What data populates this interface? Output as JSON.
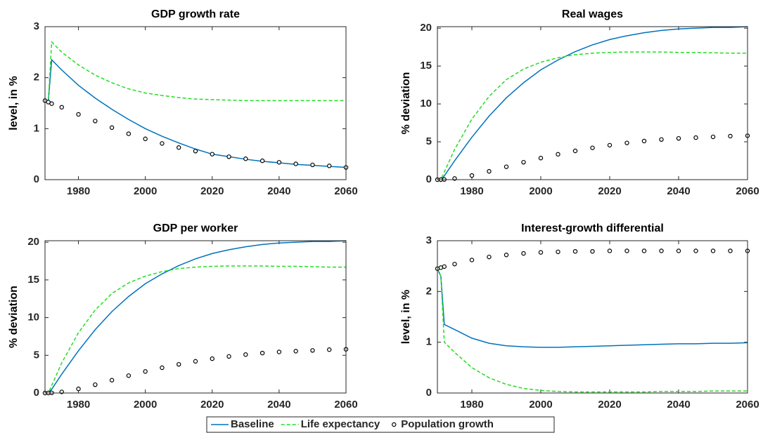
{
  "chart_data": [
    {
      "type": "line",
      "title": "GDP growth rate",
      "y_label": "level, in %",
      "x": [
        1970,
        1971,
        1972,
        1975,
        1980,
        1985,
        1990,
        1995,
        2000,
        2005,
        2010,
        2015,
        2020,
        2025,
        2030,
        2035,
        2040,
        2045,
        2050,
        2055,
        2060
      ],
      "xlim": [
        1970,
        2060
      ],
      "xticks": [
        1980,
        2000,
        2020,
        2040,
        2060
      ],
      "ylim": [
        0,
        3
      ],
      "yticks": [
        0,
        1,
        2,
        3
      ],
      "series": [
        {
          "name": "Baseline",
          "color": "#0072bd",
          "style": "solid",
          "values": [
            1.55,
            1.55,
            2.35,
            2.15,
            1.85,
            1.6,
            1.38,
            1.18,
            1.0,
            0.85,
            0.72,
            0.6,
            0.5,
            0.45,
            0.4,
            0.36,
            0.33,
            0.3,
            0.28,
            0.26,
            0.24
          ]
        },
        {
          "name": "Life expectancy",
          "color": "#22dd22",
          "style": "dashed",
          "values": [
            1.55,
            1.55,
            2.7,
            2.5,
            2.25,
            2.05,
            1.9,
            1.78,
            1.7,
            1.65,
            1.61,
            1.58,
            1.57,
            1.56,
            1.55,
            1.55,
            1.55,
            1.55,
            1.55,
            1.55,
            1.55
          ]
        },
        {
          "name": "Population growth",
          "color": "#000000",
          "style": "markers",
          "values": [
            1.55,
            1.52,
            1.49,
            1.42,
            1.28,
            1.15,
            1.02,
            0.9,
            0.8,
            0.71,
            0.63,
            0.56,
            0.5,
            0.45,
            0.41,
            0.37,
            0.34,
            0.31,
            0.29,
            0.27,
            0.24
          ]
        }
      ]
    },
    {
      "type": "line",
      "title": "Real wages",
      "y_label": "% deviation",
      "x": [
        1970,
        1971,
        1972,
        1975,
        1980,
        1985,
        1990,
        1995,
        2000,
        2005,
        2010,
        2015,
        2020,
        2025,
        2030,
        2035,
        2040,
        2045,
        2050,
        2055,
        2060
      ],
      "xlim": [
        1970,
        2060
      ],
      "xticks": [
        1980,
        2000,
        2020,
        2040,
        2060
      ],
      "ylim": [
        0,
        20.2
      ],
      "yticks": [
        0,
        5,
        10,
        15,
        20
      ],
      "series": [
        {
          "name": "Baseline",
          "color": "#0072bd",
          "style": "solid",
          "values": [
            0,
            0,
            0.5,
            2.5,
            5.6,
            8.4,
            10.8,
            12.8,
            14.5,
            15.8,
            16.9,
            17.8,
            18.5,
            19.0,
            19.4,
            19.7,
            19.9,
            20.0,
            20.1,
            20.1,
            20.2
          ]
        },
        {
          "name": "Life expectancy",
          "color": "#22dd22",
          "style": "dashed",
          "values": [
            0,
            0,
            1,
            4,
            8,
            11,
            13.2,
            14.6,
            15.5,
            16.1,
            16.5,
            16.7,
            16.8,
            16.85,
            16.85,
            16.85,
            16.8,
            16.8,
            16.75,
            16.7,
            16.7
          ]
        },
        {
          "name": "Population growth",
          "color": "#000000",
          "style": "markers",
          "values": [
            0,
            0,
            0.02,
            0.15,
            0.55,
            1.1,
            1.7,
            2.3,
            2.85,
            3.35,
            3.8,
            4.2,
            4.55,
            4.85,
            5.1,
            5.3,
            5.45,
            5.55,
            5.65,
            5.75,
            5.8
          ]
        }
      ]
    },
    {
      "type": "line",
      "title": "GDP per worker",
      "y_label": "% deviation",
      "x": [
        1970,
        1971,
        1972,
        1975,
        1980,
        1985,
        1990,
        1995,
        2000,
        2005,
        2010,
        2015,
        2020,
        2025,
        2030,
        2035,
        2040,
        2045,
        2050,
        2055,
        2060
      ],
      "xlim": [
        1970,
        2060
      ],
      "xticks": [
        1980,
        2000,
        2020,
        2040,
        2060
      ],
      "ylim": [
        0,
        20.2
      ],
      "yticks": [
        0,
        5,
        10,
        15,
        20
      ],
      "series": [
        {
          "name": "Baseline",
          "color": "#0072bd",
          "style": "solid",
          "values": [
            0,
            0,
            0.5,
            2.5,
            5.6,
            8.4,
            10.8,
            12.8,
            14.5,
            15.8,
            16.9,
            17.8,
            18.5,
            19.0,
            19.4,
            19.7,
            19.9,
            20.0,
            20.1,
            20.1,
            20.2
          ]
        },
        {
          "name": "Life expectancy",
          "color": "#22dd22",
          "style": "dashed",
          "values": [
            0,
            0,
            1,
            4,
            8,
            11,
            13.2,
            14.6,
            15.5,
            16.1,
            16.5,
            16.7,
            16.8,
            16.85,
            16.85,
            16.85,
            16.8,
            16.8,
            16.75,
            16.7,
            16.7
          ]
        },
        {
          "name": "Population growth",
          "color": "#000000",
          "style": "markers",
          "values": [
            0,
            0,
            0.02,
            0.15,
            0.55,
            1.1,
            1.7,
            2.3,
            2.85,
            3.35,
            3.8,
            4.2,
            4.55,
            4.85,
            5.1,
            5.3,
            5.45,
            5.55,
            5.65,
            5.75,
            5.8
          ]
        }
      ]
    },
    {
      "type": "line",
      "title": "Interest-growth differential",
      "y_label": "level, in %",
      "x": [
        1970,
        1971,
        1972,
        1975,
        1980,
        1985,
        1990,
        1995,
        2000,
        2005,
        2010,
        2015,
        2020,
        2025,
        2030,
        2035,
        2040,
        2045,
        2050,
        2055,
        2060
      ],
      "xlim": [
        1970,
        2060
      ],
      "xticks": [
        1980,
        2000,
        2020,
        2040,
        2060
      ],
      "ylim": [
        0,
        3
      ],
      "yticks": [
        0,
        1,
        2,
        3
      ],
      "series": [
        {
          "name": "Baseline",
          "color": "#0072bd",
          "style": "solid",
          "values": [
            2.45,
            2.3,
            1.35,
            1.25,
            1.08,
            0.98,
            0.93,
            0.91,
            0.9,
            0.9,
            0.91,
            0.92,
            0.93,
            0.94,
            0.95,
            0.96,
            0.97,
            0.97,
            0.98,
            0.98,
            0.99
          ]
        },
        {
          "name": "Life expectancy",
          "color": "#22dd22",
          "style": "dashed",
          "values": [
            2.45,
            2.3,
            1.0,
            0.8,
            0.5,
            0.3,
            0.17,
            0.09,
            0.05,
            0.03,
            0.02,
            0.02,
            0.02,
            0.02,
            0.02,
            0.03,
            0.03,
            0.03,
            0.04,
            0.04,
            0.04
          ]
        },
        {
          "name": "Population growth",
          "color": "#000000",
          "style": "markers",
          "values": [
            2.45,
            2.47,
            2.49,
            2.54,
            2.62,
            2.68,
            2.72,
            2.75,
            2.77,
            2.78,
            2.79,
            2.79,
            2.8,
            2.8,
            2.8,
            2.8,
            2.8,
            2.8,
            2.8,
            2.8,
            2.8
          ]
        }
      ]
    }
  ]
}
